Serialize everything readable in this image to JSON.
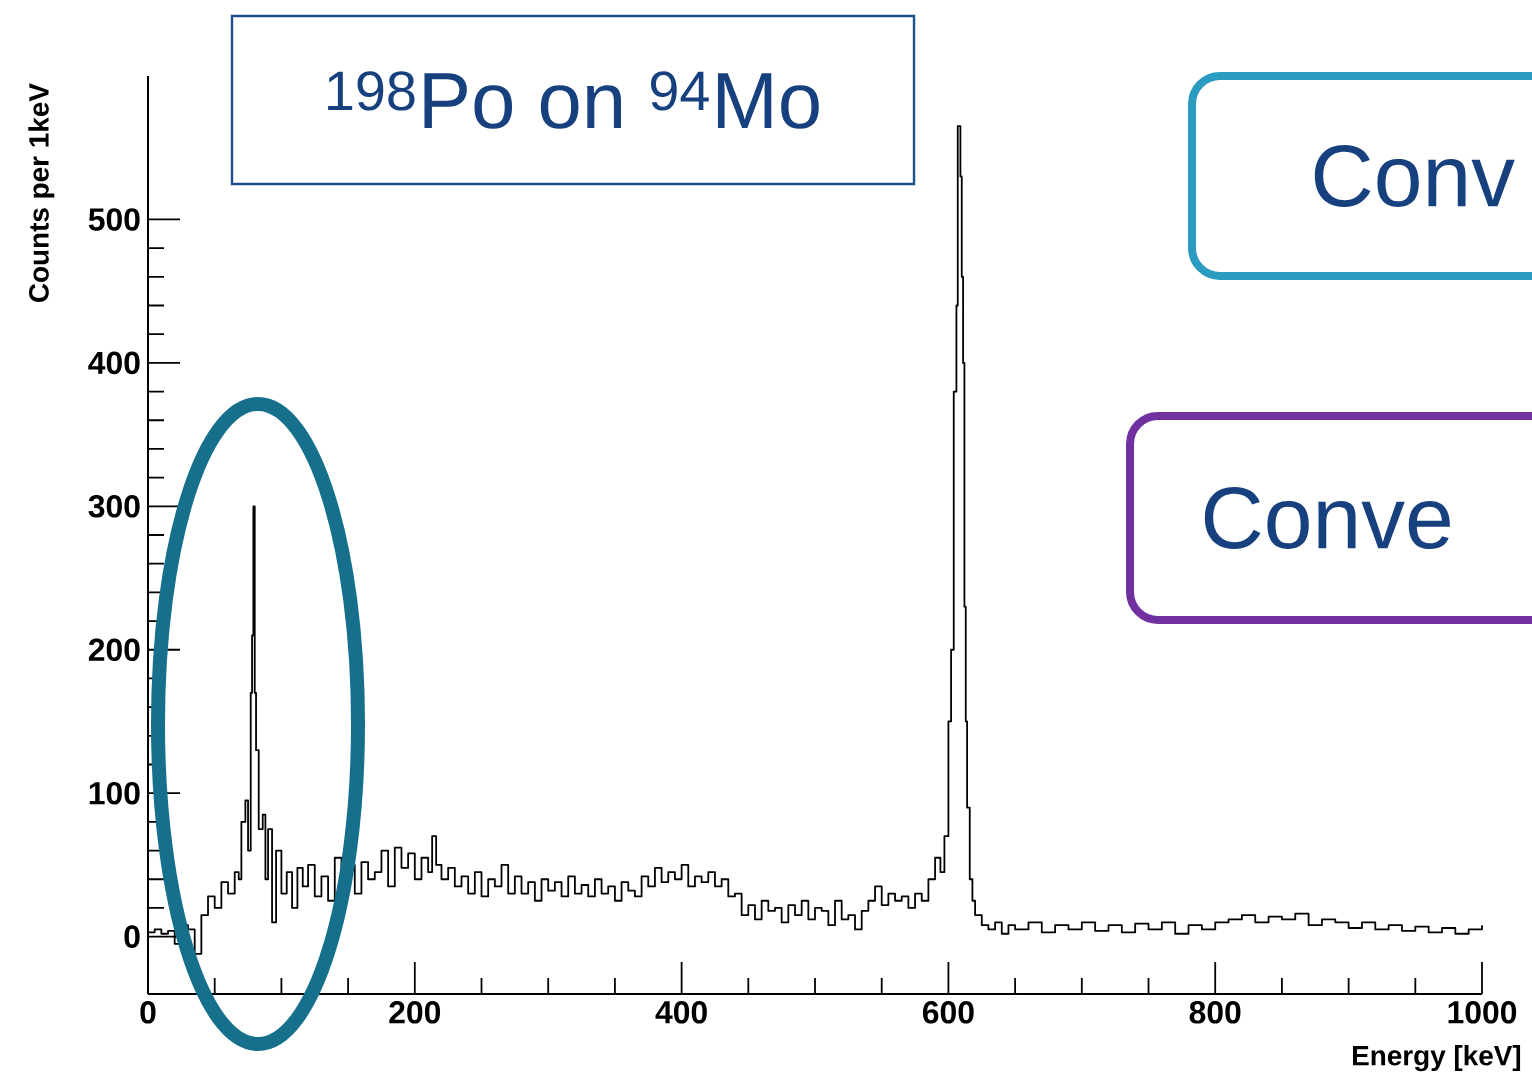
{
  "chart_data": {
    "type": "step",
    "title": "$^{198}$Po on $^{94}$Mo",
    "xlabel": "Energy [keV]",
    "ylabel": "Counts per 1keV",
    "annotations": [
      "Conv",
      "Conve"
    ],
    "x": [
      0,
      5,
      10,
      15,
      20,
      25,
      30,
      35,
      40,
      45,
      50,
      55,
      60,
      65,
      68,
      70,
      73,
      75,
      77,
      78,
      79,
      80,
      81,
      83,
      86,
      88,
      90,
      93,
      96,
      100,
      104,
      108,
      112,
      116,
      120,
      125,
      130,
      135,
      140,
      145,
      150,
      155,
      160,
      165,
      170,
      175,
      180,
      185,
      190,
      195,
      200,
      205,
      210,
      213,
      216,
      220,
      225,
      230,
      235,
      240,
      245,
      250,
      255,
      260,
      265,
      270,
      275,
      280,
      285,
      290,
      295,
      300,
      305,
      310,
      315,
      320,
      325,
      330,
      335,
      340,
      345,
      350,
      355,
      360,
      365,
      370,
      375,
      380,
      385,
      390,
      395,
      400,
      405,
      410,
      415,
      420,
      425,
      430,
      435,
      440,
      445,
      450,
      455,
      460,
      465,
      470,
      475,
      480,
      485,
      490,
      495,
      500,
      505,
      510,
      515,
      520,
      525,
      530,
      535,
      540,
      545,
      550,
      555,
      560,
      565,
      570,
      575,
      580,
      585,
      590,
      594,
      597,
      600,
      602,
      604,
      606,
      607,
      609,
      610,
      611,
      612,
      613,
      614,
      616,
      618,
      620,
      625,
      630,
      635,
      640,
      645,
      650,
      660,
      670,
      680,
      690,
      700,
      710,
      720,
      730,
      740,
      750,
      760,
      770,
      780,
      790,
      800,
      810,
      820,
      830,
      840,
      850,
      860,
      870,
      880,
      890,
      900,
      910,
      920,
      930,
      940,
      950,
      960,
      970,
      980,
      990,
      1000
    ],
    "series": [
      {
        "color": "#000000",
        "values": [
          3,
          5,
          2,
          4,
          -5,
          8,
          5,
          -12,
          15,
          28,
          20,
          38,
          30,
          45,
          40,
          80,
          95,
          60,
          170,
          210,
          300,
          170,
          130,
          75,
          85,
          40,
          75,
          10,
          60,
          30,
          45,
          20,
          48,
          35,
          50,
          28,
          42,
          25,
          55,
          38,
          50,
          30,
          52,
          40,
          45,
          60,
          35,
          62,
          48,
          58,
          40,
          55,
          45,
          70,
          50,
          40,
          48,
          35,
          42,
          30,
          45,
          28,
          40,
          35,
          50,
          30,
          42,
          30,
          38,
          25,
          40,
          32,
          38,
          28,
          42,
          30,
          36,
          28,
          40,
          30,
          35,
          25,
          38,
          32,
          28,
          42,
          35,
          48,
          38,
          45,
          40,
          50,
          35,
          42,
          38,
          45,
          35,
          40,
          28,
          30,
          15,
          22,
          12,
          25,
          18,
          20,
          10,
          22,
          15,
          25,
          12,
          20,
          18,
          8,
          25,
          12,
          15,
          5,
          18,
          25,
          35,
          22,
          30,
          25,
          28,
          20,
          30,
          25,
          40,
          55,
          45,
          70,
          150,
          200,
          380,
          440,
          565,
          530,
          460,
          400,
          230,
          150,
          90,
          40,
          25,
          15,
          8,
          5,
          10,
          2,
          8,
          5,
          10,
          3,
          8,
          5,
          10,
          4,
          8,
          3,
          9,
          5,
          10,
          2,
          8,
          5,
          10,
          12,
          15,
          10,
          14,
          12,
          16,
          8,
          12,
          10,
          6,
          10,
          5,
          8,
          4,
          7,
          3,
          6,
          2,
          5,
          8
        ]
      }
    ],
    "xlim": [
      0,
      1000
    ],
    "ylim": [
      -40,
      600
    ],
    "xticks": [
      0,
      200,
      400,
      600,
      800,
      1000
    ],
    "yticks": [
      0,
      100,
      200,
      300,
      400,
      500
    ],
    "marker": "none",
    "line_style": "solid",
    "grid": false
  }
}
